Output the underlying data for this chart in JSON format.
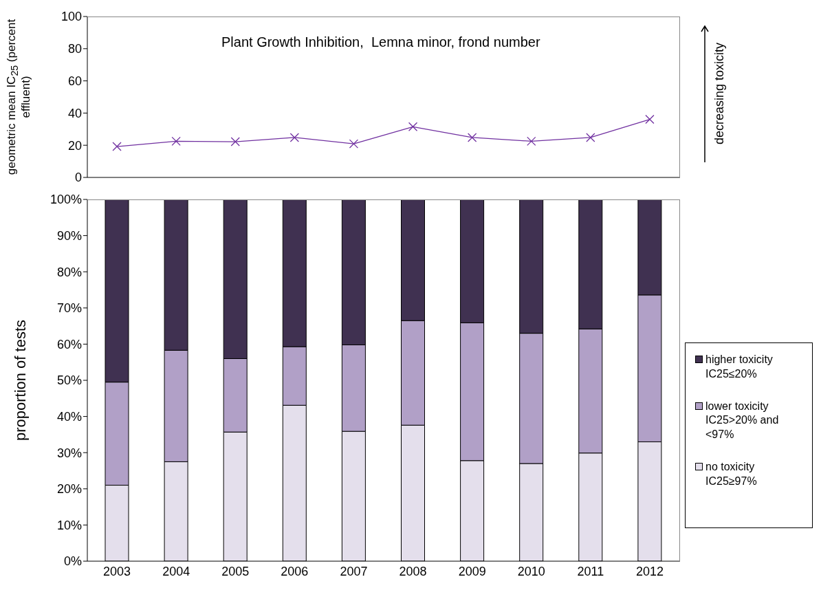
{
  "chart_data": [
    {
      "type": "line",
      "title": "Plant Growth Inhibition,  Lemna minor, frond number",
      "ylabel": "geometric mean IC$_{25}$ (percent effluent)",
      "annotations": [
        "decreasing toxicity"
      ],
      "categories": [
        "2003",
        "2004",
        "2005",
        "2006",
        "2007",
        "2008",
        "2009",
        "2010",
        "2011",
        "2012"
      ],
      "series": [
        {
          "color": "#7030a0",
          "values": [
            19.2,
            22.5,
            22.2,
            24.8,
            20.9,
            31.5,
            24.8,
            22.5,
            24.8,
            36.1
          ]
        }
      ],
      "ylim": [
        0,
        100
      ],
      "yticks": [
        0,
        20,
        40,
        60,
        80,
        100
      ],
      "tick_labels": "y",
      "marker": "cross",
      "line_style": "solid",
      "legend": false,
      "grid": false
    },
    {
      "type": "bar",
      "stacked": true,
      "ylabel": "proportion of tests",
      "legend": "right",
      "grid": false,
      "categories": [
        "2003",
        "2004",
        "2005",
        "2006",
        "2007",
        "2008",
        "2009",
        "2010",
        "2011",
        "2012"
      ],
      "series": [
        {
          "name": "no toxicity IC25≥97%",
          "color": "#e4dfec",
          "values": [
            21,
            27.5,
            35.7,
            43.1,
            35.9,
            37.6,
            27.8,
            27,
            29.9,
            33
          ]
        },
        {
          "name": "lower toxicity IC25>20% and <97%",
          "color": "#b1a0c7",
          "values": [
            28.5,
            30.8,
            20.3,
            16.2,
            23.9,
            28.9,
            38.1,
            36,
            34.3,
            40.6
          ]
        },
        {
          "name": "higher  toxicity IC25≤20%",
          "color": "#403151",
          "values": [
            50.5,
            41.7,
            44,
            40.7,
            40.2,
            33.5,
            34.1,
            37,
            35.8,
            26.4
          ]
        }
      ],
      "ylim": [
        0,
        100
      ],
      "yticks": [
        {
          "value": 0,
          "label": "0%"
        },
        {
          "value": 10,
          "label": "10%"
        },
        {
          "value": 20,
          "label": "20%"
        },
        {
          "value": 30,
          "label": "30%"
        },
        {
          "value": 40,
          "label": "40%"
        },
        {
          "value": 50,
          "label": "50%"
        },
        {
          "value": 60,
          "label": "60%"
        },
        {
          "value": 70,
          "label": "70%"
        },
        {
          "value": 80,
          "label": "80%"
        },
        {
          "value": 90,
          "label": "90%"
        },
        {
          "value": 100,
          "label": "100%"
        }
      ]
    }
  ]
}
